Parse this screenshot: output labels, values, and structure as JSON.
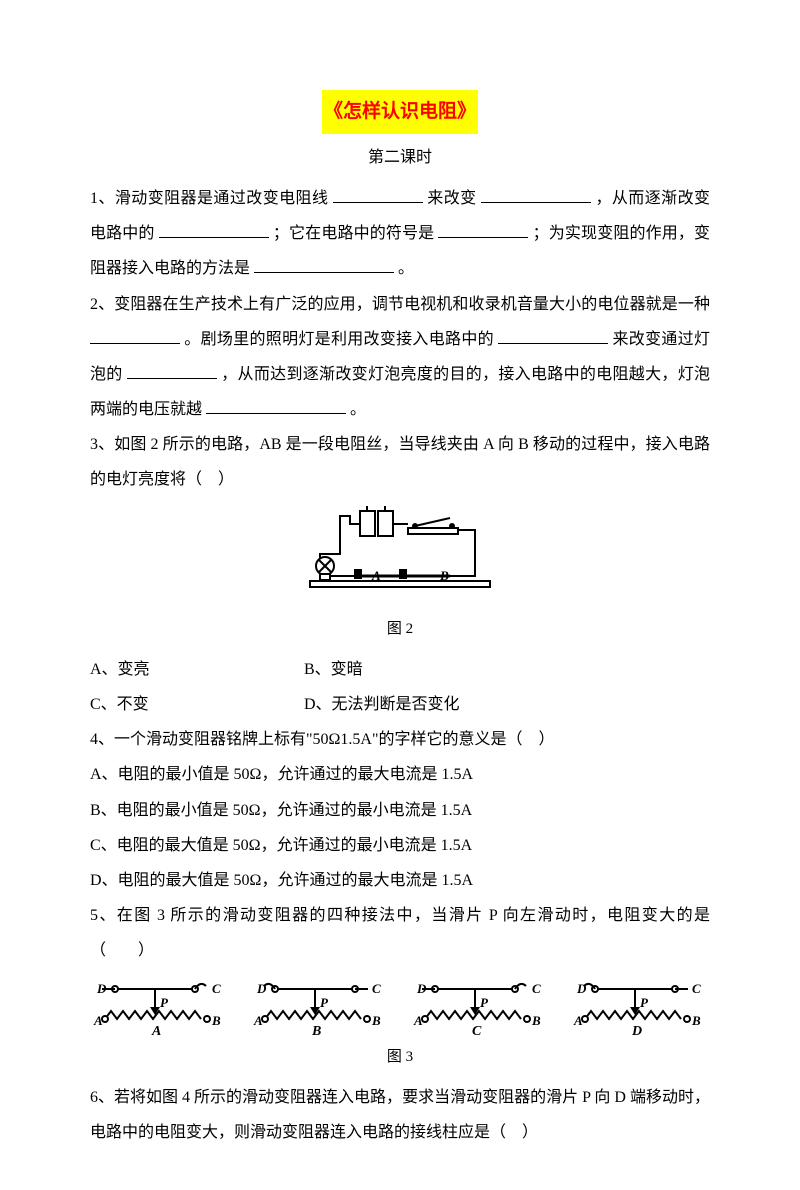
{
  "title": "《怎样认识电阻》",
  "subtitle": "第二课时",
  "q1": {
    "prefix": "1、滑动变阻器是通过改变电阻线",
    "mid1": "来改变",
    "mid2": "，从而逐渐改变电路中的",
    "mid3": "；它在电路中的符号是",
    "mid4": "；为实现变阻的作用，变阻器接入电路的方法是",
    "end": "。"
  },
  "q2": {
    "prefix": "2、变阻器在生产技术上有广泛的应用，调节电视机和收录机音量大小的电位器就是一种",
    "mid1": "。剧场里的照明灯是利用改变接入电路中的",
    "mid2": "来改变通过灯泡的",
    "mid3": "，从而达到逐渐改变灯泡亮度的目的，接入电路中的电阻越大，灯泡两端的电压就越",
    "end": "。"
  },
  "q3": {
    "stem": "3、如图 2 所示的电路，AB 是一段电阻丝，当导线夹由 A 向 B 移动的过程中，接入电路的电灯亮度将（　）",
    "caption": "图 2",
    "optA": "A、变亮",
    "optB": "B、变暗",
    "optC": "C、不变",
    "optD": "D、无法判断是否变化"
  },
  "q4": {
    "stem": "4、一个滑动变阻器铭牌上标有\"50Ω1.5A\"的字样它的意义是（　）",
    "optA": "A、电阻的最小值是 50Ω，允许通过的最大电流是 1.5A",
    "optB": "B、电阻的最小值是 50Ω，允许通过的最小电流是 1.5A",
    "optC": "C、电阻的最大值是 50Ω，允许通过的最小电流是 1.5A",
    "optD": "D、电阻的最大值是 50Ω，允许通过的最大电流是 1.5A"
  },
  "q5": {
    "stem": "5、在图 3 所示的滑动变阻器的四种接法中，当滑片 P 向左滑动时，电阻变大的是（　　）",
    "caption": "图 3",
    "labels": [
      "A",
      "B",
      "C",
      "D"
    ],
    "variants": [
      {
        "topLeft": true,
        "topRight": false
      },
      {
        "topLeft": false,
        "topRight": true
      },
      {
        "topLeft": true,
        "topRight": false
      },
      {
        "topLeft": false,
        "topRight": true
      }
    ]
  },
  "q6": {
    "stem": "6、若将如图 4 所示的滑动变阻器连入电路，要求当滑动变阻器的滑片 P 向 D 端移动时，电路中的电阻变大，则滑动变阻器连入电路的接线柱应是（　）"
  },
  "colors": {
    "title_bg": "#ffff00",
    "title_fg": "#ff0000",
    "text": "#000000",
    "bg": "#ffffff"
  }
}
